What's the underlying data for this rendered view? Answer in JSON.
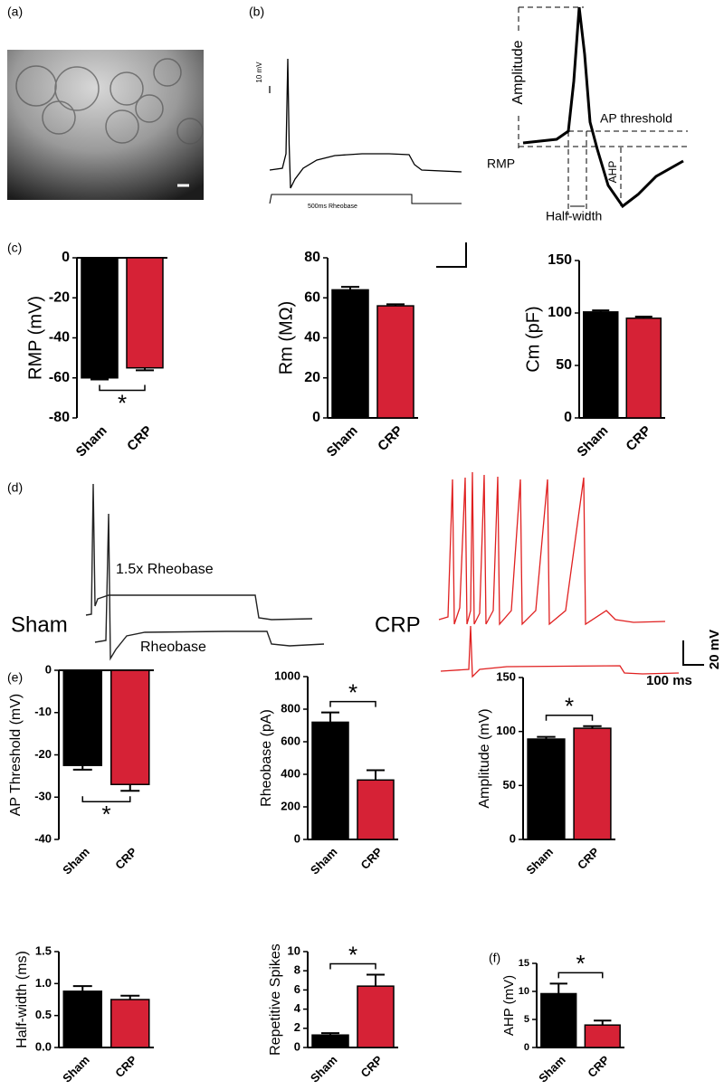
{
  "panel_labels": [
    "(a)",
    "(b)",
    "(c)",
    "(d)",
    "(e)",
    "(f)"
  ],
  "rheobase_trace": {
    "scale": "10 mV",
    "stimulus": "500ms Rheobase"
  },
  "ap_diagram": {
    "amplitude": "Amplitude",
    "threshold": "AP threshold",
    "rmp": "RMP",
    "ahp": "AHP",
    "half_width": "Half-width"
  },
  "traces": {
    "sham": "Sham",
    "crp": "CRP",
    "upper": "1.5x Rheobase",
    "lower": "Rheobase",
    "scale_v": "20 mV",
    "scale_t": "100 ms"
  },
  "chart_data": [
    {
      "type": "bar",
      "y_label": "RMP (mV)",
      "categories": [
        "Sham",
        "CRP"
      ],
      "values": [
        -60,
        -55
      ],
      "errors": [
        0.8,
        1.2
      ],
      "colors": [
        "#000000",
        "#d62236"
      ],
      "ylim": [
        -80,
        0
      ],
      "yticks": [
        0,
        -20,
        -40,
        -60,
        -80
      ],
      "annotation": "*"
    },
    {
      "type": "bar",
      "y_label": "Rm (MΩ)",
      "categories": [
        "Sham",
        "CRP"
      ],
      "values": [
        64,
        56
      ],
      "errors": [
        1.5,
        0.8
      ],
      "colors": [
        "#000000",
        "#d62236"
      ],
      "ylim": [
        0,
        80
      ],
      "yticks": [
        0,
        20,
        40,
        60,
        80
      ]
    },
    {
      "type": "bar",
      "y_label": "Cm (pF)",
      "categories": [
        "Sham",
        "CRP"
      ],
      "values": [
        101,
        95
      ],
      "errors": [
        1.5,
        1.5
      ],
      "colors": [
        "#000000",
        "#d62236"
      ],
      "ylim": [
        0,
        150
      ],
      "yticks": [
        0,
        50,
        100,
        150
      ]
    },
    {
      "type": "bar",
      "y_label": "AP Threshold (mV)",
      "categories": [
        "Sham",
        "CRP"
      ],
      "values": [
        -22.5,
        -27
      ],
      "errors": [
        1,
        1.5
      ],
      "colors": [
        "#000000",
        "#d62236"
      ],
      "ylim": [
        -40,
        0
      ],
      "yticks": [
        0,
        -10,
        -20,
        -30,
        -40
      ],
      "annotation": "*"
    },
    {
      "type": "bar",
      "y_label": "Rheobase (pA)",
      "categories": [
        "Sham",
        "CRP"
      ],
      "values": [
        720,
        365
      ],
      "errors": [
        60,
        60
      ],
      "colors": [
        "#000000",
        "#d62236"
      ],
      "ylim": [
        0,
        1000
      ],
      "yticks": [
        0,
        200,
        400,
        600,
        800,
        1000
      ],
      "annotation": "*"
    },
    {
      "type": "bar",
      "y_label": "Amplitude (mV)",
      "categories": [
        "Sham",
        "CRP"
      ],
      "values": [
        93,
        103
      ],
      "errors": [
        2,
        2
      ],
      "colors": [
        "#000000",
        "#d62236"
      ],
      "ylim": [
        0,
        150
      ],
      "yticks": [
        0,
        50,
        100,
        150
      ],
      "annotation": "*"
    },
    {
      "type": "bar",
      "y_label": "Half-width (ms)",
      "categories": [
        "Sham",
        "CRP"
      ],
      "values": [
        0.88,
        0.75
      ],
      "errors": [
        0.08,
        0.06
      ],
      "colors": [
        "#000000",
        "#d62236"
      ],
      "ylim": [
        0,
        1.5
      ],
      "yticks": [
        {
          "value": 0,
          "label": "0.0"
        },
        0.5,
        {
          "value": 1,
          "label": "1.0"
        },
        1.5
      ]
    },
    {
      "type": "bar",
      "y_label": "Repetitive Spikes",
      "categories": [
        "Sham",
        "CRP"
      ],
      "values": [
        1.3,
        6.4
      ],
      "errors": [
        0.2,
        1.2
      ],
      "colors": [
        "#000000",
        "#d62236"
      ],
      "ylim": [
        0,
        10
      ],
      "yticks": [
        0,
        2,
        4,
        6,
        8,
        10
      ],
      "annotation": "*"
    },
    {
      "type": "bar",
      "y_label": "AHP (mV)",
      "categories": [
        "Sham",
        "CRP"
      ],
      "values": [
        9.6,
        4.0
      ],
      "errors": [
        1.8,
        0.8
      ],
      "colors": [
        "#000000",
        "#d62236"
      ],
      "ylim": [
        0,
        15
      ],
      "yticks": [
        0,
        5,
        10,
        15
      ],
      "annotation": "*"
    }
  ]
}
